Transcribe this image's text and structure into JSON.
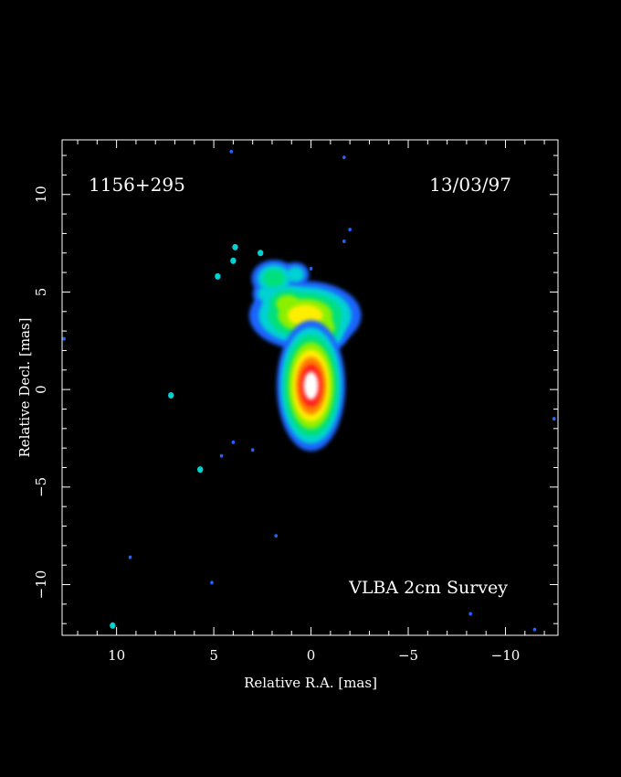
{
  "chart_data": {
    "type": "heatmap",
    "source_label": "1156+295",
    "date_label": "13/03/97",
    "survey_label": "VLBA 2cm Survey",
    "xlabel": "Relative R.A. [mas]",
    "ylabel": "Relative Decl. [mas]",
    "xlim": [
      12.8,
      -12.7
    ],
    "ylim": [
      -12.6,
      12.8
    ],
    "x_ticks": [
      10,
      5,
      0,
      -5,
      -10
    ],
    "y_ticks": [
      10,
      5,
      0,
      -5,
      -10
    ],
    "x_tick_labels": [
      "10",
      "5",
      "0",
      "−5",
      "−10"
    ],
    "y_tick_labels": [
      "10",
      "5",
      "0",
      "−5",
      "−10"
    ],
    "colormap": [
      "#1e64ff",
      "#00d2d2",
      "#00e07a",
      "#8af000",
      "#ffee00",
      "#ff8000",
      "#ff1e1e",
      "#ffffff"
    ],
    "core": {
      "x": 0.0,
      "y": 0.2,
      "sigma_x": 0.55,
      "sigma_y": 1.05
    },
    "jet_blobs": [
      {
        "x": 0.3,
        "y": 3.8,
        "sx": 0.9,
        "sy": 0.55,
        "level": 4
      },
      {
        "x": -0.7,
        "y": 3.2,
        "sx": 0.5,
        "sy": 0.5,
        "level": 3
      },
      {
        "x": 1.2,
        "y": 4.4,
        "sx": 0.6,
        "sy": 0.45,
        "level": 3
      },
      {
        "x": 1.9,
        "y": 5.7,
        "sx": 0.55,
        "sy": 0.45,
        "level": 2
      },
      {
        "x": 0.8,
        "y": 5.9,
        "sx": 0.45,
        "sy": 0.4,
        "level": 1
      },
      {
        "x": 2.3,
        "y": 4.9,
        "sx": 0.45,
        "sy": 0.4,
        "level": 1
      },
      {
        "x": -1.1,
        "y": 2.7,
        "sx": 0.4,
        "sy": 0.3,
        "level": 1
      }
    ],
    "noise_spots": [
      {
        "x": 4.0,
        "y": 6.6,
        "level": 1
      },
      {
        "x": 3.9,
        "y": 7.3,
        "level": 1
      },
      {
        "x": 2.6,
        "y": 7.0,
        "level": 1
      },
      {
        "x": 4.8,
        "y": 5.8,
        "level": 1
      },
      {
        "x": 0.0,
        "y": 6.2,
        "level": 0
      },
      {
        "x": -2.0,
        "y": 8.2,
        "level": 0
      },
      {
        "x": -1.7,
        "y": 7.6,
        "level": 0
      },
      {
        "x": -1.7,
        "y": 11.9,
        "level": 0
      },
      {
        "x": 4.1,
        "y": 12.2,
        "level": 0
      },
      {
        "x": 7.2,
        "y": -0.3,
        "level": 1
      },
      {
        "x": 5.7,
        "y": -4.1,
        "level": 1
      },
      {
        "x": 4.6,
        "y": -3.4,
        "level": 0
      },
      {
        "x": 4.0,
        "y": -2.7,
        "level": 0
      },
      {
        "x": 3.0,
        "y": -3.1,
        "level": 0
      },
      {
        "x": 9.3,
        "y": -8.6,
        "level": 0
      },
      {
        "x": 10.2,
        "y": -12.1,
        "level": 1
      },
      {
        "x": 1.8,
        "y": -7.5,
        "level": 0
      },
      {
        "x": 5.1,
        "y": -9.9,
        "level": 0
      },
      {
        "x": 12.7,
        "y": 2.6,
        "level": 0
      },
      {
        "x": -12.5,
        "y": -1.5,
        "level": 0
      },
      {
        "x": -8.2,
        "y": -11.5,
        "level": 0
      },
      {
        "x": -11.5,
        "y": -12.3,
        "level": 0
      },
      {
        "x": 2.3,
        "y": 3.5,
        "level": 0
      },
      {
        "x": 1.4,
        "y": -0.8,
        "level": 0
      }
    ]
  }
}
